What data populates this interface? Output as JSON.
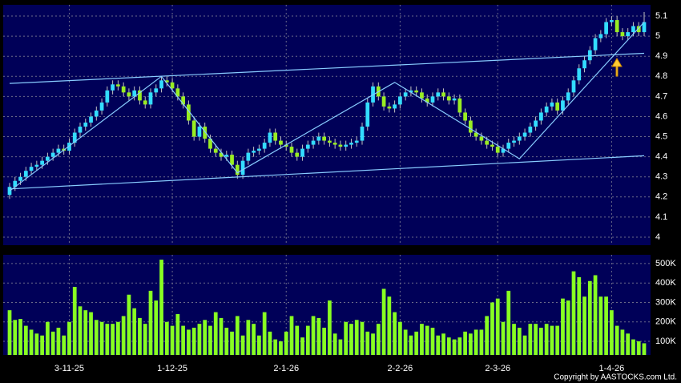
{
  "chart_data": {
    "type": "candlestick",
    "categories": [
      null,
      null,
      null,
      null,
      null,
      null,
      null,
      null,
      null,
      null,
      null,
      "3-11-25",
      null,
      null,
      null,
      null,
      null,
      null,
      null,
      null,
      null,
      null,
      null,
      null,
      null,
      null,
      null,
      null,
      null,
      null,
      "1-12-25",
      null,
      null,
      null,
      null,
      null,
      null,
      null,
      null,
      null,
      null,
      null,
      null,
      null,
      null,
      null,
      null,
      null,
      null,
      null,
      null,
      "2-1-26",
      null,
      null,
      null,
      null,
      null,
      null,
      null,
      null,
      null,
      null,
      null,
      null,
      null,
      null,
      null,
      null,
      null,
      null,
      null,
      null,
      "2-2-26",
      null,
      null,
      null,
      null,
      null,
      null,
      null,
      null,
      null,
      null,
      null,
      null,
      null,
      null,
      null,
      null,
      null,
      "2-3-26",
      null,
      null,
      null,
      null,
      null,
      null,
      null,
      null,
      null,
      null,
      null,
      null,
      null,
      null,
      null,
      null,
      null,
      null,
      null,
      null,
      "1-4-26",
      null,
      null,
      null,
      null,
      null,
      null
    ],
    "open": [
      4.21,
      4.25,
      4.28,
      4.3,
      4.33,
      4.35,
      4.36,
      4.38,
      4.4,
      4.42,
      4.44,
      4.43,
      4.47,
      4.52,
      4.55,
      4.57,
      4.6,
      4.63,
      4.67,
      4.73,
      4.76,
      4.75,
      4.72,
      4.7,
      4.73,
      4.68,
      4.66,
      4.72,
      4.74,
      4.78,
      4.77,
      4.74,
      4.7,
      4.66,
      4.58,
      4.5,
      4.55,
      4.49,
      4.44,
      4.42,
      4.4,
      4.41,
      4.36,
      4.31,
      4.38,
      4.42,
      4.43,
      4.44,
      4.47,
      4.52,
      4.48,
      4.46,
      4.45,
      4.42,
      4.4,
      4.44,
      4.46,
      4.48,
      4.5,
      4.48,
      4.47,
      4.46,
      4.45,
      4.46,
      4.47,
      4.48,
      4.55,
      4.67,
      4.75,
      4.7,
      4.65,
      4.64,
      4.66,
      4.7,
      4.72,
      4.73,
      4.72,
      4.69,
      4.67,
      4.7,
      4.72,
      4.7,
      4.68,
      4.69,
      4.62,
      4.58,
      4.52,
      4.5,
      4.48,
      4.46,
      4.45,
      4.42,
      4.44,
      4.47,
      4.48,
      4.5,
      4.52,
      4.55,
      4.58,
      4.62,
      4.65,
      4.67,
      4.63,
      4.68,
      4.72,
      4.78,
      4.84,
      4.88,
      4.93,
      4.99,
      5.01,
      5.07,
      5.08,
      5.02,
      5.0,
      5.02,
      5.05,
      5.02
    ],
    "high": [
      4.27,
      4.3,
      4.32,
      4.35,
      4.37,
      4.38,
      4.4,
      4.42,
      4.44,
      4.46,
      4.46,
      4.49,
      4.54,
      4.57,
      4.59,
      4.62,
      4.65,
      4.69,
      4.75,
      4.78,
      4.78,
      4.77,
      4.74,
      4.75,
      4.75,
      4.7,
      4.74,
      4.76,
      4.8,
      4.8,
      4.79,
      4.76,
      4.72,
      4.68,
      4.6,
      4.57,
      4.57,
      4.51,
      4.46,
      4.44,
      4.43,
      4.43,
      4.38,
      4.4,
      4.44,
      4.45,
      4.46,
      4.49,
      4.54,
      4.54,
      4.5,
      4.48,
      4.47,
      4.44,
      4.46,
      4.48,
      4.5,
      4.52,
      4.52,
      4.5,
      4.49,
      4.48,
      4.48,
      4.49,
      4.5,
      4.57,
      4.69,
      4.77,
      4.77,
      4.72,
      4.67,
      4.68,
      4.72,
      4.74,
      4.75,
      4.75,
      4.74,
      4.71,
      4.72,
      4.74,
      4.74,
      4.72,
      4.71,
      4.71,
      4.64,
      4.6,
      4.54,
      4.52,
      4.5,
      4.48,
      4.47,
      4.46,
      4.49,
      4.5,
      4.52,
      4.54,
      4.57,
      4.6,
      4.64,
      4.67,
      4.69,
      4.69,
      4.7,
      4.74,
      4.8,
      4.86,
      4.9,
      4.95,
      5.01,
      5.03,
      5.09,
      5.1,
      5.1,
      5.04,
      5.04,
      5.07,
      5.07,
      5.12
    ],
    "low": [
      4.19,
      4.23,
      4.26,
      4.28,
      4.31,
      4.33,
      4.34,
      4.36,
      4.38,
      4.4,
      4.41,
      4.41,
      4.45,
      4.5,
      4.53,
      4.55,
      4.58,
      4.61,
      4.65,
      4.71,
      4.73,
      4.7,
      4.68,
      4.68,
      4.66,
      4.64,
      4.64,
      4.7,
      4.72,
      4.75,
      4.72,
      4.68,
      4.64,
      4.56,
      4.48,
      4.48,
      4.47,
      4.42,
      4.4,
      4.38,
      4.38,
      4.34,
      4.29,
      4.29,
      4.36,
      4.4,
      4.41,
      4.42,
      4.45,
      4.46,
      4.44,
      4.43,
      4.4,
      4.38,
      4.38,
      4.42,
      4.44,
      4.46,
      4.46,
      4.45,
      4.44,
      4.43,
      4.43,
      4.44,
      4.45,
      4.46,
      4.53,
      4.65,
      4.68,
      4.63,
      4.62,
      4.62,
      4.64,
      4.68,
      4.7,
      4.7,
      4.67,
      4.65,
      4.65,
      4.68,
      4.68,
      4.66,
      4.66,
      4.6,
      4.56,
      4.5,
      4.48,
      4.46,
      4.44,
      4.43,
      4.4,
      4.4,
      4.42,
      4.45,
      4.46,
      4.48,
      4.5,
      4.53,
      4.56,
      4.6,
      4.63,
      4.61,
      4.61,
      4.66,
      4.7,
      4.76,
      4.82,
      4.86,
      4.91,
      4.97,
      4.99,
      5.05,
      5.0,
      4.98,
      4.98,
      5.0,
      5.0,
      5.0
    ],
    "close": [
      4.25,
      4.28,
      4.3,
      4.33,
      4.35,
      4.36,
      4.38,
      4.4,
      4.42,
      4.44,
      4.43,
      4.47,
      4.52,
      4.55,
      4.57,
      4.6,
      4.63,
      4.67,
      4.73,
      4.76,
      4.75,
      4.72,
      4.7,
      4.73,
      4.68,
      4.66,
      4.72,
      4.74,
      4.78,
      4.77,
      4.74,
      4.7,
      4.66,
      4.58,
      4.5,
      4.55,
      4.49,
      4.44,
      4.42,
      4.4,
      4.41,
      4.36,
      4.31,
      4.38,
      4.42,
      4.43,
      4.44,
      4.47,
      4.52,
      4.48,
      4.46,
      4.45,
      4.42,
      4.4,
      4.44,
      4.46,
      4.48,
      4.5,
      4.48,
      4.47,
      4.46,
      4.45,
      4.46,
      4.47,
      4.48,
      4.55,
      4.67,
      4.75,
      4.7,
      4.65,
      4.64,
      4.66,
      4.7,
      4.72,
      4.73,
      4.72,
      4.69,
      4.67,
      4.7,
      4.72,
      4.7,
      4.68,
      4.69,
      4.62,
      4.58,
      4.52,
      4.5,
      4.48,
      4.46,
      4.45,
      4.42,
      4.44,
      4.47,
      4.48,
      4.5,
      4.52,
      4.55,
      4.58,
      4.62,
      4.65,
      4.67,
      4.63,
      4.68,
      4.72,
      4.78,
      4.84,
      4.88,
      4.93,
      4.99,
      5.01,
      5.07,
      5.08,
      5.02,
      5.0,
      5.02,
      5.05,
      5.02,
      5.07
    ],
    "volume": [
      260000,
      210000,
      215000,
      180000,
      160000,
      140000,
      130000,
      200000,
      150000,
      170000,
      130000,
      200000,
      380000,
      280000,
      260000,
      250000,
      210000,
      200000,
      190000,
      190000,
      200000,
      230000,
      340000,
      270000,
      220000,
      190000,
      360000,
      310000,
      520000,
      200000,
      180000,
      240000,
      180000,
      160000,
      170000,
      190000,
      210000,
      180000,
      250000,
      220000,
      170000,
      150000,
      230000,
      130000,
      210000,
      190000,
      130000,
      250000,
      150000,
      110000,
      100000,
      150000,
      230000,
      180000,
      120000,
      180000,
      230000,
      220000,
      170000,
      310000,
      140000,
      110000,
      200000,
      190000,
      210000,
      200000,
      150000,
      140000,
      190000,
      370000,
      330000,
      250000,
      200000,
      160000,
      130000,
      150000,
      190000,
      180000,
      170000,
      130000,
      140000,
      120000,
      110000,
      120000,
      150000,
      140000,
      160000,
      160000,
      230000,
      300000,
      320000,
      200000,
      360000,
      190000,
      170000,
      130000,
      190000,
      190000,
      170000,
      190000,
      180000,
      180000,
      320000,
      310000,
      460000,
      430000,
      330000,
      410000,
      440000,
      330000,
      330000,
      260000,
      180000,
      160000,
      140000,
      110000,
      100000,
      90000
    ],
    "up_color": "#33ddff",
    "down_color": "#99ee22",
    "volume_color": "#88ff22",
    "ylim": [
      3.96,
      5.156
    ],
    "yticks": [
      4,
      4.1,
      4.2,
      4.3,
      4.4,
      4.5,
      4.6,
      4.7,
      4.8,
      4.9,
      5,
      5.1
    ],
    "volume_ylim": [
      30000,
      545000
    ],
    "volume_yticks": [
      {
        "value": 100000,
        "label": "100K"
      },
      {
        "value": 200000,
        "label": "200K"
      },
      {
        "value": 300000,
        "label": "300K"
      },
      {
        "value": 400000,
        "label": "400K"
      },
      {
        "value": 500000,
        "label": "500K"
      }
    ],
    "grid": true,
    "trendlines": [
      {
        "x": [
          0,
          117
        ],
        "y": [
          4.765,
          4.915
        ],
        "color": "#88ccff"
      },
      {
        "x": [
          0,
          117
        ],
        "y": [
          4.24,
          4.405
        ],
        "color": "#88ccff"
      },
      {
        "x": [
          0,
          28,
          42,
          71,
          94,
          117
        ],
        "y": [
          4.23,
          4.8,
          4.32,
          4.77,
          4.39,
          5.07
        ],
        "color": "#88ccff"
      }
    ],
    "copyright": "Copyright by AASTOCKS.com Ltd."
  }
}
